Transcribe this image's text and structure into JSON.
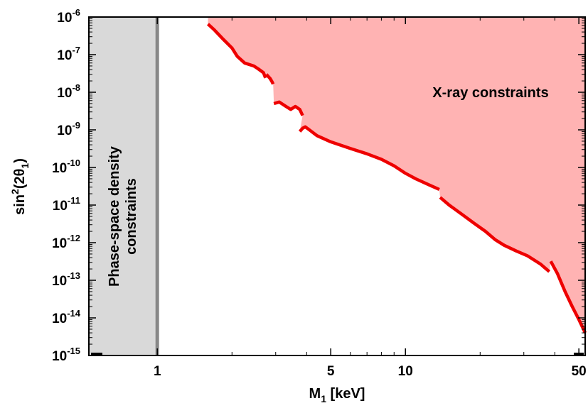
{
  "chart_data": {
    "type": "area",
    "xlabel": "M",
    "xlabel_sub": "1",
    "xlabel_unit": " [keV]",
    "ylabel_prefix": "sin",
    "ylabel_sup": "2",
    "ylabel_mid": "(2θ",
    "ylabel_sub": "1",
    "ylabel_suffix": ")",
    "x_scale": "log",
    "y_scale": "log",
    "xlim": [
      0.53,
      53
    ],
    "ylim": [
      1e-15,
      1e-06
    ],
    "x_ticks": [
      {
        "value": 1,
        "label": "1"
      },
      {
        "value": 5,
        "label": "5"
      },
      {
        "value": 10,
        "label": "10"
      },
      {
        "value": 50,
        "label": "50"
      }
    ],
    "y_ticks": [
      {
        "exp": -15,
        "base": "10",
        "sup": "-15"
      },
      {
        "exp": -14,
        "base": "10",
        "sup": "-14"
      },
      {
        "exp": -13,
        "base": "10",
        "sup": "-13"
      },
      {
        "exp": -12,
        "base": "10",
        "sup": "-12"
      },
      {
        "exp": -11,
        "base": "10",
        "sup": "-11"
      },
      {
        "exp": -10,
        "base": "10",
        "sup": "-10"
      },
      {
        "exp": -9,
        "base": "10",
        "sup": "-9"
      },
      {
        "exp": -8,
        "base": "10",
        "sup": "-8"
      },
      {
        "exp": -7,
        "base": "10",
        "sup": "-7"
      },
      {
        "exp": -6,
        "base": "10",
        "sup": "-6"
      }
    ],
    "regions": [
      {
        "name": "phase-space",
        "label_lines": [
          "Phase-space density",
          "constraints"
        ],
        "x_range": [
          0.53,
          1.0
        ],
        "fill": "#d9d9d9",
        "edge_color": "#888888"
      },
      {
        "name": "x-ray",
        "label": "X-ray constraints",
        "fill": "#ffb3b3"
      }
    ],
    "series": [
      {
        "line_color": "#ee0000",
        "segments": [
          [
            [
              1.6,
              6.5e-07
            ],
            [
              1.7,
              4.5e-07
            ],
            [
              1.85,
              2.5e-07
            ],
            [
              2.0,
              1.5e-07
            ],
            [
              2.1,
              9e-08
            ],
            [
              2.25,
              6e-08
            ],
            [
              2.45,
              5e-08
            ],
            [
              2.55,
              4.2e-08
            ],
            [
              2.68,
              3.3e-08
            ],
            [
              2.73,
              2.4e-08
            ]
          ],
          [
            [
              2.75,
              3e-08
            ],
            [
              2.85,
              2.3e-08
            ],
            [
              2.9,
              1.9e-08
            ],
            [
              2.93,
              1.65e-08
            ]
          ],
          [
            [
              2.95,
              5e-09
            ],
            [
              3.1,
              5.5e-09
            ],
            [
              3.3,
              4.2e-09
            ],
            [
              3.45,
              3.5e-09
            ],
            [
              3.6,
              4.2e-09
            ],
            [
              3.75,
              3.5e-09
            ],
            [
              3.85,
              2.4e-09
            ]
          ],
          [
            [
              3.75,
              9e-10
            ],
            [
              3.85,
              1.1e-09
            ],
            [
              3.95,
              1.2e-09
            ],
            [
              4.1,
              1e-09
            ],
            [
              4.4,
              7e-10
            ],
            [
              5.0,
              4.8e-10
            ],
            [
              6.0,
              3.2e-10
            ],
            [
              7.0,
              2.3e-10
            ],
            [
              8.0,
              1.65e-10
            ],
            [
              9.0,
              1.1e-10
            ],
            [
              10.0,
              7e-11
            ],
            [
              11.0,
              5e-11
            ],
            [
              12.5,
              3.4e-11
            ],
            [
              13.7,
              2.6e-11
            ]
          ],
          [
            [
              13.8,
              1.6e-11
            ],
            [
              15.0,
              1e-11
            ],
            [
              17.0,
              5.5e-12
            ],
            [
              19.0,
              3.2e-12
            ],
            [
              21.0,
              2e-12
            ],
            [
              23.0,
              1.2e-12
            ],
            [
              25.0,
              8.5e-13
            ],
            [
              28.0,
              6e-13
            ],
            [
              31.0,
              4.5e-13
            ],
            [
              35.0,
              2.7e-13
            ],
            [
              38.0,
              1.7e-13
            ]
          ],
          [
            [
              38.5,
              3.2e-13
            ],
            [
              41.0,
              1.5e-13
            ],
            [
              44.0,
              5e-14
            ],
            [
              47.0,
              2e-14
            ],
            [
              50.0,
              9e-15
            ],
            [
              53.0,
              4e-15
            ]
          ]
        ]
      }
    ]
  }
}
